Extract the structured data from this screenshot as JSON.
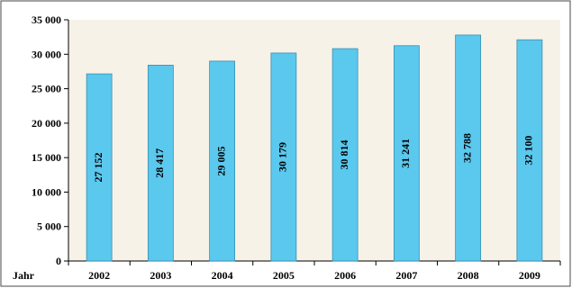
{
  "chart_data": {
    "type": "bar",
    "xlabel": "Jahr",
    "categories": [
      "2002",
      "2003",
      "2004",
      "2005",
      "2006",
      "2007",
      "2008",
      "2009"
    ],
    "values": [
      27152,
      28417,
      29005,
      30179,
      30814,
      31241,
      32788,
      32100
    ],
    "value_labels": [
      "27 152",
      "28 417",
      "29 005",
      "30 179",
      "30 814",
      "31 241",
      "32 788",
      "32 100"
    ],
    "ylim": [
      0,
      35000
    ],
    "yticks": [
      0,
      5000,
      10000,
      15000,
      20000,
      25000,
      30000,
      35000
    ],
    "ytick_labels": [
      "0",
      "5 000",
      "10 000",
      "15 000",
      "20 000",
      "25 000",
      "30 000",
      "35 000"
    ],
    "grid": false,
    "colors": {
      "bar_fill": "#5bc8ee",
      "bar_stroke": "#3a8fb0",
      "plot_background": "#f7f2e7",
      "frame": "#4a4a4a"
    }
  }
}
